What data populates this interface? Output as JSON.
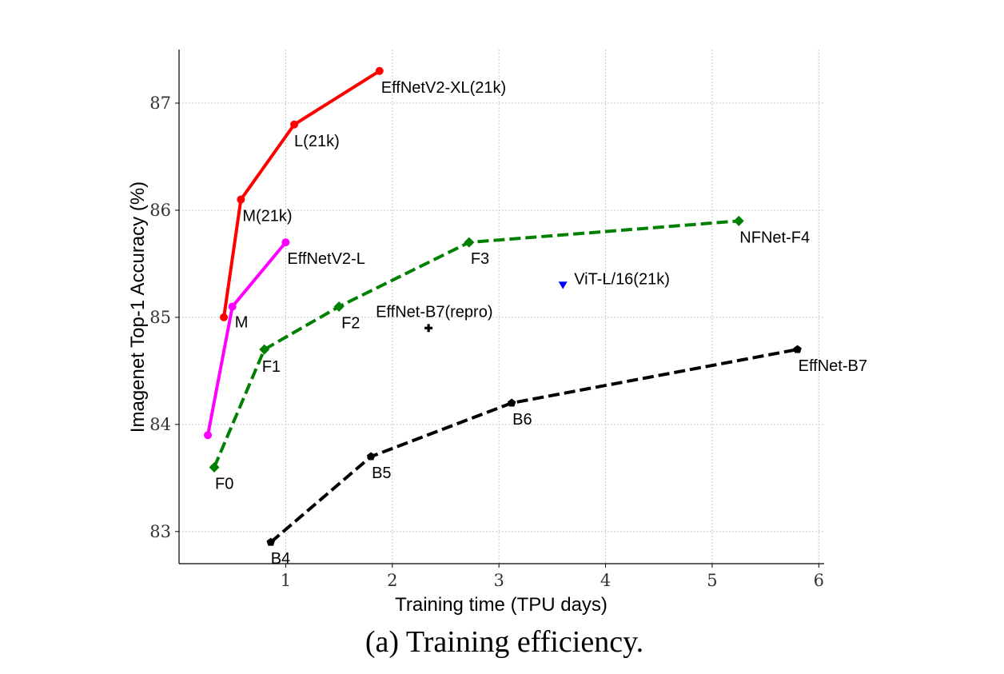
{
  "caption": "(a) Training efficiency.",
  "chart_data": {
    "type": "line",
    "title": "",
    "xlabel": "Training time (TPU days)",
    "ylabel": "Imagenet Top-1 Accuracy (%)",
    "xlim": [
      0.0,
      6.05
    ],
    "ylim": [
      82.7,
      87.5
    ],
    "xticks": [
      1,
      2,
      3,
      4,
      5,
      6
    ],
    "yticks": [
      83,
      84,
      85,
      86,
      87
    ],
    "grid": true,
    "legend": "none",
    "series": [
      {
        "key": "effnetv2_21k",
        "color": "#ff0000",
        "dash": "solid",
        "marker": "circle",
        "points": [
          {
            "x": 0.42,
            "y": 85.0,
            "label": ""
          },
          {
            "x": 0.58,
            "y": 86.1,
            "label": "M(21k)"
          },
          {
            "x": 1.08,
            "y": 86.8,
            "label": "L(21k)"
          },
          {
            "x": 1.88,
            "y": 87.3,
            "label": "EffNetV2-XL(21k)"
          }
        ]
      },
      {
        "key": "effnetv2",
        "color": "#ff00ff",
        "dash": "solid",
        "marker": "circle",
        "points": [
          {
            "x": 0.27,
            "y": 83.9,
            "label": ""
          },
          {
            "x": 0.5,
            "y": 85.1,
            "label": "M"
          },
          {
            "x": 1.0,
            "y": 85.7,
            "label": "EffNetV2-L"
          }
        ]
      },
      {
        "key": "nfnet",
        "color": "#008000",
        "dash": "dashed",
        "marker": "diamond",
        "points": [
          {
            "x": 0.33,
            "y": 83.6,
            "label": "F0"
          },
          {
            "x": 0.8,
            "y": 84.7,
            "label": "F1"
          },
          {
            "x": 1.5,
            "y": 85.1,
            "label": "F2"
          },
          {
            "x": 2.72,
            "y": 85.7,
            "label": "F3"
          },
          {
            "x": 5.25,
            "y": 85.9,
            "label": "NFNet-F4"
          }
        ]
      },
      {
        "key": "effnet",
        "color": "#000000",
        "dash": "dashed",
        "marker": "pentagon",
        "points": [
          {
            "x": 0.86,
            "y": 82.9,
            "label": "B4"
          },
          {
            "x": 1.8,
            "y": 83.7,
            "label": "B5"
          },
          {
            "x": 3.12,
            "y": 84.2,
            "label": "B6"
          },
          {
            "x": 5.8,
            "y": 84.7,
            "label": "EffNet-B7"
          }
        ]
      }
    ],
    "single_points": [
      {
        "key": "vit",
        "x": 3.6,
        "y": 85.3,
        "label": "ViT-L/16(21k)",
        "color": "#0000ff",
        "marker": "triangle-down"
      },
      {
        "key": "effnet_b7_repro",
        "x": 2.34,
        "y": 84.9,
        "label": "EffNet-B7(repro)",
        "color": "#000000",
        "marker": "plus"
      }
    ]
  }
}
